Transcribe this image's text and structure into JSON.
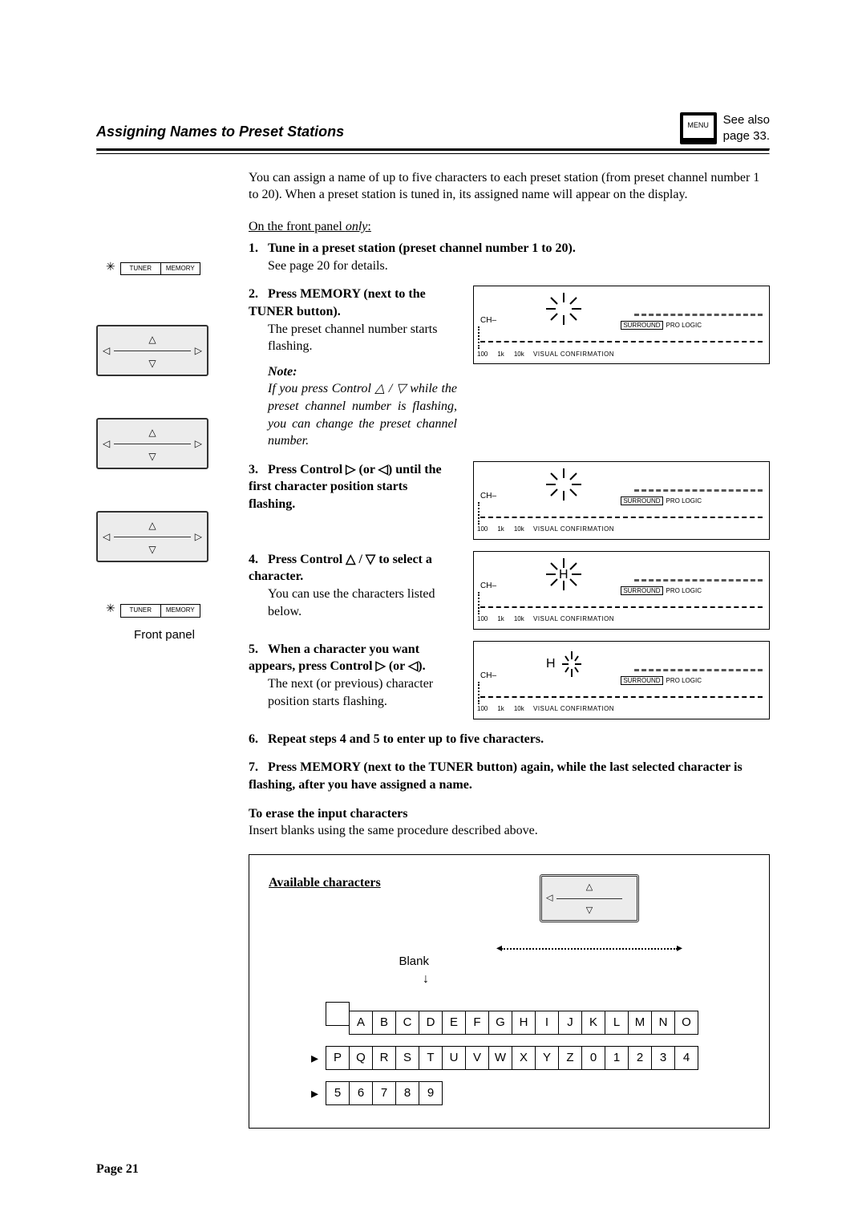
{
  "header": {
    "title": "Assigning Names to Preset Stations",
    "see_also_line1": "See also",
    "see_also_line2": "page 33.",
    "tv_label": "MENU"
  },
  "intro": "You can assign a name of up to five characters to each preset station (from preset channel number 1 to 20). When a preset station is tuned in, its assigned name will appear on the display.",
  "front_panel_label_prefix": "On the front panel ",
  "front_panel_label_only": "only",
  "front_panel_label_suffix": ":",
  "steps": {
    "s1": {
      "num": "1.",
      "head": "Tune in a preset station (preset channel number 1 to 20).",
      "body": "See page 20 for details."
    },
    "s2": {
      "num": "2.",
      "head": "Press MEMORY (next to the TUNER button).",
      "body": "The preset channel number starts flashing.",
      "note_head": "Note:",
      "note_body": "If you press Control △ / ▽ while the preset channel number is flashing, you can change the preset channel number."
    },
    "s3": {
      "num": "3.",
      "head": "Press Control ▷ (or ◁) until the first character position starts flashing."
    },
    "s4": {
      "num": "4.",
      "head": "Press Control △ / ▽ to select a character.",
      "body": "You can use the characters listed below."
    },
    "s5": {
      "num": "5.",
      "head": "When a character you want appears, press Control ▷ (or ◁).",
      "body": "The next (or previous) character position starts flashing."
    },
    "s6": {
      "num": "6.",
      "head": "Repeat steps 4 and 5 to enter up to five characters."
    },
    "s7": {
      "num": "7.",
      "head": "Press MEMORY (next to the TUNER button) again, while the last selected character is flashing, after you have assigned a name."
    }
  },
  "left_labels": {
    "tuner": "TUNER",
    "memory": "MEMORY",
    "front_panel": "Front panel"
  },
  "display": {
    "ch": "CH–",
    "surround": "SURROUND",
    "pro_logic": "PRO LOGIC",
    "visual": "VISUAL  CONFIRMATION",
    "t100": "100",
    "t1k": "1k",
    "t10k": "10k"
  },
  "erase": {
    "head": "To erase the input characters",
    "body": "Insert blanks using the same procedure described above."
  },
  "charbox": {
    "title": "Available characters",
    "blank": "Blank",
    "row1": [
      "",
      "A",
      "B",
      "C",
      "D",
      "E",
      "F",
      "G",
      "H",
      "I",
      "J",
      "K",
      "L",
      "M",
      "N",
      "O"
    ],
    "row2": [
      "P",
      "Q",
      "R",
      "S",
      "T",
      "U",
      "V",
      "W",
      "X",
      "Y",
      "Z",
      "0",
      "1",
      "2",
      "3",
      "4"
    ],
    "row3": [
      "5",
      "6",
      "7",
      "8",
      "9"
    ]
  },
  "page": "Page 21",
  "glyphs": {
    "tri_up": "△",
    "tri_down": "▽",
    "tri_left": "◁",
    "tri_right": "▷",
    "spark": "✳",
    "arrow_r": "▸",
    "arrow_l": "◂",
    "arrow_d": "↓"
  }
}
